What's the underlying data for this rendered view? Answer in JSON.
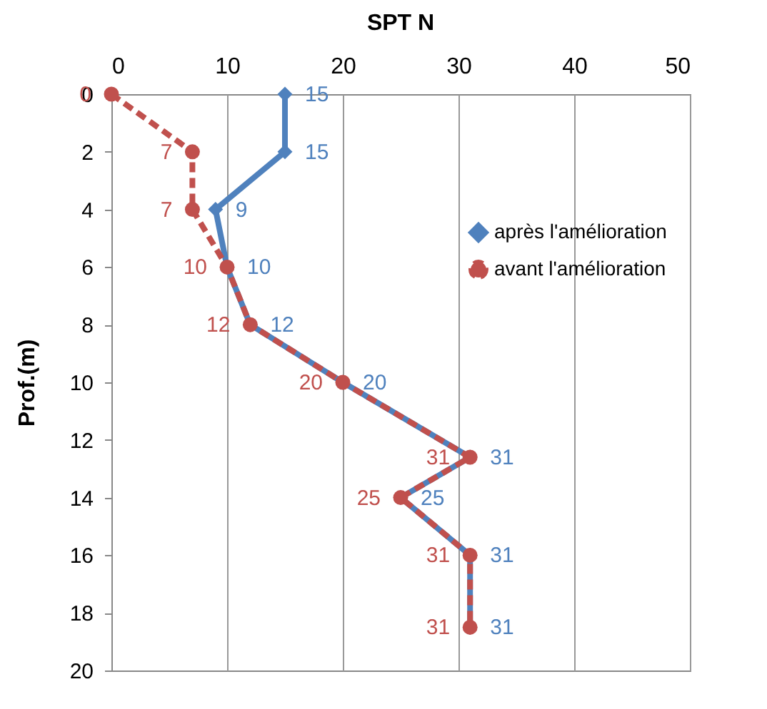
{
  "chart_data": {
    "type": "line",
    "orientation": "horizontal",
    "title": "SPT N",
    "ylabel": "Prof.(m)",
    "xlim": [
      0,
      50
    ],
    "xticks": [
      0,
      10,
      20,
      30,
      40,
      50
    ],
    "ylim": [
      20,
      0
    ],
    "yticks": [
      0,
      2,
      4,
      6,
      8,
      10,
      12,
      14,
      16,
      18,
      20
    ],
    "grid": "x",
    "legend": "right",
    "data_labels": true,
    "series": [
      {
        "name": "après l'amélioration",
        "color": "#4f81bd",
        "marker": "diamond",
        "line_style": "solid",
        "x": [
          0,
          2,
          4,
          6,
          8,
          10,
          12.6,
          14,
          16,
          18.5
        ],
        "values": [
          15,
          15,
          9,
          10,
          12,
          20,
          31,
          25,
          31,
          31
        ]
      },
      {
        "name": "avant l'amélioration",
        "color": "#c0504d",
        "marker": "circle",
        "line_style": "dashed",
        "x": [
          0,
          2,
          4,
          6,
          8,
          10,
          12.6,
          14,
          16,
          18.5
        ],
        "values": [
          0,
          7,
          7,
          10,
          12,
          20,
          31,
          25,
          31,
          31
        ]
      }
    ]
  }
}
